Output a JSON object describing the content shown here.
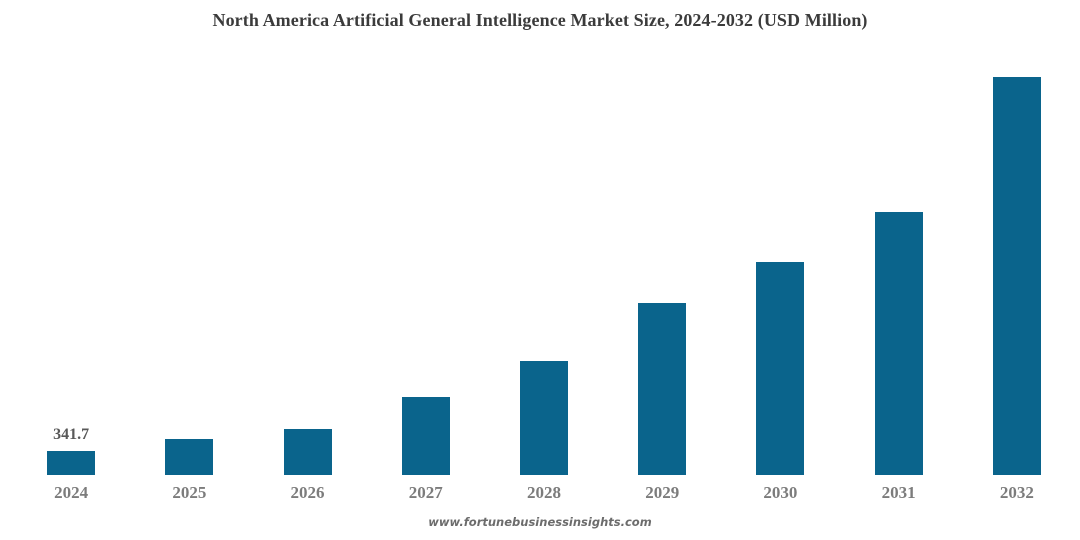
{
  "page": {
    "background": "#ffffff"
  },
  "watermark": "www.fortunebusinessinsights.com",
  "colors": {
    "bar": "#0a648c",
    "title_text": "#3b3b3b",
    "value_label_text": "#595959",
    "tick_label_text": "#7c7c7c",
    "watermark_text": "#6c6c6c",
    "background": "#ffffff"
  },
  "chart_data": {
    "type": "bar",
    "title": "North America Artificial General Intelligence Market Size, 2024-2032 (USD Million)",
    "categories": [
      "2024",
      "2025",
      "2026",
      "2027",
      "2028",
      "2029",
      "2030",
      "2031",
      "2032"
    ],
    "values": [
      341.7,
      500,
      640,
      1090,
      1590,
      2400,
      2970,
      3670,
      5550
    ],
    "data_labels": [
      "341.7",
      "",
      "",
      "",
      "",
      "",
      "",
      "",
      ""
    ],
    "xlabel": "",
    "ylabel": "",
    "ylim": [
      0,
      5580
    ],
    "grid": false,
    "axes_visible": false,
    "legend_position": "none",
    "bar_color": "#0a648c"
  }
}
